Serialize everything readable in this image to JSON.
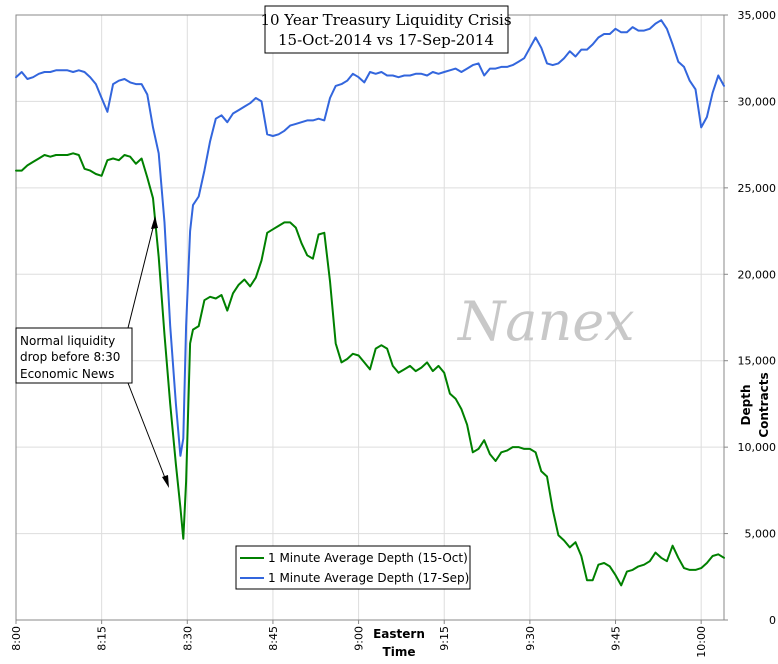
{
  "chart_data": {
    "type": "line",
    "title": [
      "10 Year Treasury Liquidity Crisis",
      "15-Oct-2014 vs 17-Sep-2014"
    ],
    "xlabel": [
      "Eastern",
      "Time"
    ],
    "ylabel": [
      "Depth",
      "Contracts"
    ],
    "x_ticks": [
      "8:00",
      "8:15",
      "8:30",
      "8:45",
      "9:00",
      "9:15",
      "9:30",
      "9:45",
      "10:00"
    ],
    "x_tick_minutes": [
      0,
      15,
      30,
      45,
      60,
      75,
      90,
      105,
      120
    ],
    "xlim_minutes": [
      0,
      124
    ],
    "ylim": [
      0,
      35000
    ],
    "y_ticks": [
      0,
      5000,
      10000,
      15000,
      20000,
      25000,
      30000,
      35000
    ],
    "y_tick_labels": [
      "0",
      "5,000",
      "10,000",
      "15,000",
      "20,000",
      "25,000",
      "30,000",
      "35,000"
    ],
    "grid": true,
    "legend_position": "bottom-center",
    "watermark": "Nanex",
    "annotation": [
      "Normal liquidity",
      "drop before 8:30",
      "Economic News"
    ],
    "series": [
      {
        "name": "1 Minute Average Depth (15-Oct)",
        "color": "#008000",
        "points": [
          [
            0,
            26000
          ],
          [
            1,
            26000
          ],
          [
            2,
            26300
          ],
          [
            3,
            26500
          ],
          [
            4,
            26700
          ],
          [
            5,
            26900
          ],
          [
            6,
            26800
          ],
          [
            7,
            26900
          ],
          [
            8,
            26900
          ],
          [
            9,
            26900
          ],
          [
            10,
            27000
          ],
          [
            11,
            26900
          ],
          [
            12,
            26100
          ],
          [
            13,
            26000
          ],
          [
            14,
            25800
          ],
          [
            15,
            25700
          ],
          [
            16,
            26600
          ],
          [
            17,
            26700
          ],
          [
            18,
            26600
          ],
          [
            19,
            26900
          ],
          [
            20,
            26800
          ],
          [
            21,
            26400
          ],
          [
            22,
            26700
          ],
          [
            23,
            25600
          ],
          [
            24,
            24400
          ],
          [
            25,
            21000
          ],
          [
            26,
            16500
          ],
          [
            27,
            12500
          ],
          [
            28,
            9000
          ],
          [
            28.8,
            6500
          ],
          [
            29.3,
            4700
          ],
          [
            29.8,
            8000
          ],
          [
            30.5,
            16000
          ],
          [
            31,
            16800
          ],
          [
            32,
            17000
          ],
          [
            33,
            18500
          ],
          [
            34,
            18700
          ],
          [
            35,
            18600
          ],
          [
            36,
            18800
          ],
          [
            37,
            17900
          ],
          [
            38,
            18900
          ],
          [
            39,
            19400
          ],
          [
            40,
            19700
          ],
          [
            41,
            19300
          ],
          [
            42,
            19800
          ],
          [
            43,
            20800
          ],
          [
            44,
            22400
          ],
          [
            45,
            22600
          ],
          [
            46,
            22800
          ],
          [
            47,
            23000
          ],
          [
            48,
            23000
          ],
          [
            49,
            22700
          ],
          [
            50,
            21800
          ],
          [
            51,
            21100
          ],
          [
            52,
            20900
          ],
          [
            53,
            22300
          ],
          [
            54,
            22400
          ],
          [
            55,
            19600
          ],
          [
            56,
            16000
          ],
          [
            57,
            14900
          ],
          [
            58,
            15100
          ],
          [
            59,
            15400
          ],
          [
            60,
            15300
          ],
          [
            61,
            14900
          ],
          [
            62,
            14500
          ],
          [
            63,
            15700
          ],
          [
            64,
            15900
          ],
          [
            65,
            15700
          ],
          [
            66,
            14700
          ],
          [
            67,
            14300
          ],
          [
            68,
            14500
          ],
          [
            69,
            14700
          ],
          [
            70,
            14400
          ],
          [
            71,
            14600
          ],
          [
            72,
            14900
          ],
          [
            73,
            14400
          ],
          [
            74,
            14700
          ],
          [
            75,
            14300
          ],
          [
            76,
            13100
          ],
          [
            77,
            12800
          ],
          [
            78,
            12200
          ],
          [
            79,
            11300
          ],
          [
            80,
            9700
          ],
          [
            81,
            9900
          ],
          [
            82,
            10400
          ],
          [
            83,
            9600
          ],
          [
            84,
            9200
          ],
          [
            85,
            9700
          ],
          [
            86,
            9800
          ],
          [
            87,
            10000
          ],
          [
            88,
            10000
          ],
          [
            89,
            9900
          ],
          [
            90,
            9900
          ],
          [
            91,
            9700
          ],
          [
            92,
            8600
          ],
          [
            93,
            8300
          ],
          [
            94,
            6400
          ],
          [
            95,
            4900
          ],
          [
            96,
            4600
          ],
          [
            97,
            4200
          ],
          [
            98,
            4500
          ],
          [
            99,
            3700
          ],
          [
            100,
            2300
          ],
          [
            101,
            2300
          ],
          [
            102,
            3200
          ],
          [
            103,
            3300
          ],
          [
            104,
            3100
          ],
          [
            105,
            2600
          ],
          [
            106,
            2000
          ],
          [
            107,
            2800
          ],
          [
            108,
            2900
          ],
          [
            109,
            3100
          ],
          [
            110,
            3200
          ],
          [
            111,
            3400
          ],
          [
            112,
            3900
          ],
          [
            113,
            3600
          ],
          [
            114,
            3400
          ],
          [
            115,
            4300
          ],
          [
            116,
            3600
          ],
          [
            117,
            3000
          ],
          [
            118,
            2900
          ],
          [
            119,
            2900
          ],
          [
            120,
            3000
          ],
          [
            121,
            3300
          ],
          [
            122,
            3700
          ],
          [
            123,
            3800
          ],
          [
            124,
            3600
          ]
        ]
      },
      {
        "name": "1 Minute Average Depth (17-Sep)",
        "color": "#3366dd",
        "points": [
          [
            0,
            31400
          ],
          [
            1,
            31700
          ],
          [
            2,
            31300
          ],
          [
            3,
            31400
          ],
          [
            4,
            31600
          ],
          [
            5,
            31700
          ],
          [
            6,
            31700
          ],
          [
            7,
            31800
          ],
          [
            8,
            31800
          ],
          [
            9,
            31800
          ],
          [
            10,
            31700
          ],
          [
            11,
            31800
          ],
          [
            12,
            31700
          ],
          [
            13,
            31400
          ],
          [
            14,
            31000
          ],
          [
            15,
            30200
          ],
          [
            16,
            29400
          ],
          [
            17,
            31000
          ],
          [
            18,
            31200
          ],
          [
            19,
            31300
          ],
          [
            20,
            31100
          ],
          [
            21,
            31000
          ],
          [
            22,
            31000
          ],
          [
            23,
            30400
          ],
          [
            24,
            28500
          ],
          [
            25,
            27000
          ],
          [
            26,
            23000
          ],
          [
            27,
            17000
          ],
          [
            28,
            12500
          ],
          [
            28.8,
            9500
          ],
          [
            29.3,
            10500
          ],
          [
            29.8,
            17000
          ],
          [
            30.5,
            22500
          ],
          [
            31,
            24000
          ],
          [
            32,
            24500
          ],
          [
            33,
            26000
          ],
          [
            34,
            27700
          ],
          [
            35,
            29000
          ],
          [
            36,
            29200
          ],
          [
            37,
            28800
          ],
          [
            38,
            29300
          ],
          [
            39,
            29500
          ],
          [
            40,
            29700
          ],
          [
            41,
            29900
          ],
          [
            42,
            30200
          ],
          [
            43,
            30000
          ],
          [
            44,
            28100
          ],
          [
            45,
            28000
          ],
          [
            46,
            28100
          ],
          [
            47,
            28300
          ],
          [
            48,
            28600
          ],
          [
            49,
            28700
          ],
          [
            50,
            28800
          ],
          [
            51,
            28900
          ],
          [
            52,
            28900
          ],
          [
            53,
            29000
          ],
          [
            54,
            28900
          ],
          [
            55,
            30200
          ],
          [
            56,
            30900
          ],
          [
            57,
            31000
          ],
          [
            58,
            31200
          ],
          [
            59,
            31600
          ],
          [
            60,
            31400
          ],
          [
            61,
            31100
          ],
          [
            62,
            31700
          ],
          [
            63,
            31600
          ],
          [
            64,
            31700
          ],
          [
            65,
            31500
          ],
          [
            66,
            31500
          ],
          [
            67,
            31400
          ],
          [
            68,
            31500
          ],
          [
            69,
            31500
          ],
          [
            70,
            31600
          ],
          [
            71,
            31600
          ],
          [
            72,
            31500
          ],
          [
            73,
            31700
          ],
          [
            74,
            31600
          ],
          [
            75,
            31700
          ],
          [
            76,
            31800
          ],
          [
            77,
            31900
          ],
          [
            78,
            31700
          ],
          [
            79,
            31900
          ],
          [
            80,
            32100
          ],
          [
            81,
            32200
          ],
          [
            82,
            31500
          ],
          [
            83,
            31900
          ],
          [
            84,
            31900
          ],
          [
            85,
            32000
          ],
          [
            86,
            32000
          ],
          [
            87,
            32100
          ],
          [
            88,
            32300
          ],
          [
            89,
            32500
          ],
          [
            90,
            33100
          ],
          [
            91,
            33700
          ],
          [
            92,
            33100
          ],
          [
            93,
            32200
          ],
          [
            94,
            32100
          ],
          [
            95,
            32200
          ],
          [
            96,
            32500
          ],
          [
            97,
            32900
          ],
          [
            98,
            32600
          ],
          [
            99,
            33000
          ],
          [
            100,
            33000
          ],
          [
            101,
            33300
          ],
          [
            102,
            33700
          ],
          [
            103,
            33900
          ],
          [
            104,
            33900
          ],
          [
            105,
            34200
          ],
          [
            106,
            34000
          ],
          [
            107,
            34000
          ],
          [
            108,
            34300
          ],
          [
            109,
            34100
          ],
          [
            110,
            34100
          ],
          [
            111,
            34200
          ],
          [
            112,
            34500
          ],
          [
            113,
            34700
          ],
          [
            114,
            34200
          ],
          [
            115,
            33300
          ],
          [
            116,
            32300
          ],
          [
            117,
            32000
          ],
          [
            118,
            31200
          ],
          [
            119,
            30700
          ],
          [
            120,
            28500
          ],
          [
            121,
            29100
          ],
          [
            122,
            30500
          ],
          [
            123,
            31500
          ],
          [
            124,
            30900
          ]
        ]
      }
    ]
  }
}
